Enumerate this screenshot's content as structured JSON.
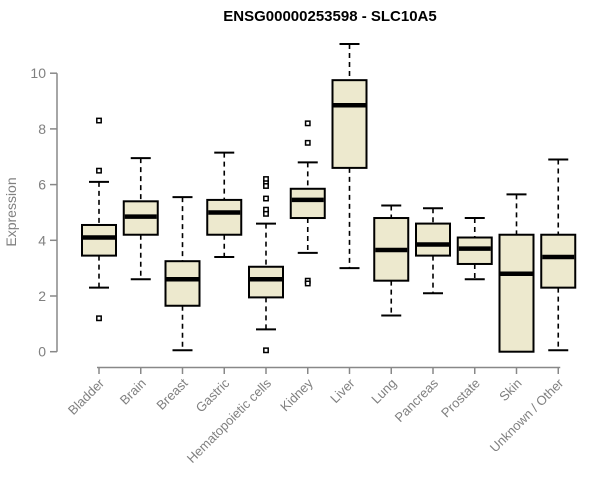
{
  "chart_data": {
    "type": "boxplot",
    "title": "ENSG00000253598 - SLC10A5",
    "ylabel": "Expression",
    "xlabel": "",
    "ylim": [
      0,
      10
    ],
    "yticks": [
      0,
      2,
      4,
      6,
      8,
      10
    ],
    "grid": false,
    "legend": "none",
    "categories": [
      "Bladder",
      "Brain",
      "Breast",
      "Gastric",
      "Hematopoietic cells",
      "Kidney",
      "Liver",
      "Lung",
      "Pancreas",
      "Prostate",
      "Skin",
      "Unknown / Other"
    ],
    "series": [
      {
        "name": "Bladder",
        "whisker_low": 2.3,
        "q1": 3.45,
        "median": 4.1,
        "q3": 4.55,
        "whisker_high": 6.1,
        "outliers": [
          8.3,
          6.5,
          1.2
        ]
      },
      {
        "name": "Brain",
        "whisker_low": 2.6,
        "q1": 4.2,
        "median": 4.85,
        "q3": 5.4,
        "whisker_high": 6.95,
        "outliers": []
      },
      {
        "name": "Breast",
        "whisker_low": 0.05,
        "q1": 1.65,
        "median": 2.6,
        "q3": 3.25,
        "whisker_high": 5.55,
        "outliers": []
      },
      {
        "name": "Gastric",
        "whisker_low": 3.4,
        "q1": 4.2,
        "median": 5.0,
        "q3": 5.45,
        "whisker_high": 7.15,
        "outliers": []
      },
      {
        "name": "Hematopoietic cells",
        "whisker_low": 0.8,
        "q1": 1.95,
        "median": 2.6,
        "q3": 3.05,
        "whisker_high": 4.6,
        "outliers": [
          6.2,
          6.05,
          5.95,
          5.5,
          5.1,
          4.95,
          0.05
        ]
      },
      {
        "name": "Kidney",
        "whisker_low": 3.55,
        "q1": 4.8,
        "median": 5.45,
        "q3": 5.85,
        "whisker_high": 6.8,
        "outliers": [
          8.2,
          7.5,
          2.55,
          2.45
        ]
      },
      {
        "name": "Liver",
        "whisker_low": 3.0,
        "q1": 6.6,
        "median": 8.85,
        "q3": 9.75,
        "whisker_high": 11.05,
        "outliers": []
      },
      {
        "name": "Lung",
        "whisker_low": 1.3,
        "q1": 2.55,
        "median": 3.65,
        "q3": 4.8,
        "whisker_high": 5.25,
        "outliers": []
      },
      {
        "name": "Pancreas",
        "whisker_low": 2.1,
        "q1": 3.45,
        "median": 3.85,
        "q3": 4.6,
        "whisker_high": 5.15,
        "outliers": []
      },
      {
        "name": "Prostate",
        "whisker_low": 2.6,
        "q1": 3.15,
        "median": 3.7,
        "q3": 4.1,
        "whisker_high": 4.8,
        "outliers": []
      },
      {
        "name": "Skin",
        "whisker_low": 0.0,
        "q1": 0.0,
        "median": 2.8,
        "q3": 4.2,
        "whisker_high": 5.65,
        "outliers": []
      },
      {
        "name": "Unknown / Other",
        "whisker_low": 0.05,
        "q1": 2.3,
        "median": 3.4,
        "q3": 4.2,
        "whisker_high": 6.9,
        "outliers": []
      }
    ],
    "colors": {
      "box_fill": "#EDE9CE",
      "box_stroke": "#000000",
      "median": "#000000",
      "whisker": "#000000",
      "axis": "#888888",
      "tick_label": "#808080",
      "title": "#000000",
      "background": "#FFFFFF"
    }
  }
}
